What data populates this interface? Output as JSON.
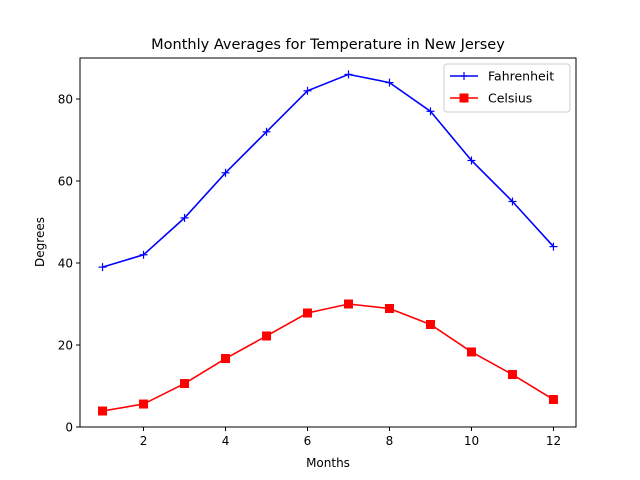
{
  "chart_data": {
    "type": "line",
    "title": "Monthly Averages for Temperature in New Jersey",
    "xlabel": "Months",
    "ylabel": "Degrees",
    "x": [
      1,
      2,
      3,
      4,
      5,
      6,
      7,
      8,
      9,
      10,
      11,
      12
    ],
    "xlim": [
      0.45,
      12.55
    ],
    "ylim": [
      0,
      90
    ],
    "xticks": [
      2,
      4,
      6,
      8,
      10,
      12
    ],
    "yticks": [
      0,
      20,
      40,
      60,
      80
    ],
    "grid": false,
    "legend_position": "top-right",
    "series": [
      {
        "name": "Fahrenheit",
        "values": [
          39,
          42,
          51,
          62,
          72,
          82,
          86,
          84,
          77,
          65,
          55,
          44
        ],
        "color": "#0000ff",
        "marker": "plus"
      },
      {
        "name": "Celsius",
        "values": [
          3.9,
          5.6,
          10.6,
          16.7,
          22.2,
          27.8,
          30.0,
          28.9,
          25.0,
          18.3,
          12.8,
          6.7
        ],
        "color": "#ff0000",
        "marker": "square"
      }
    ]
  }
}
